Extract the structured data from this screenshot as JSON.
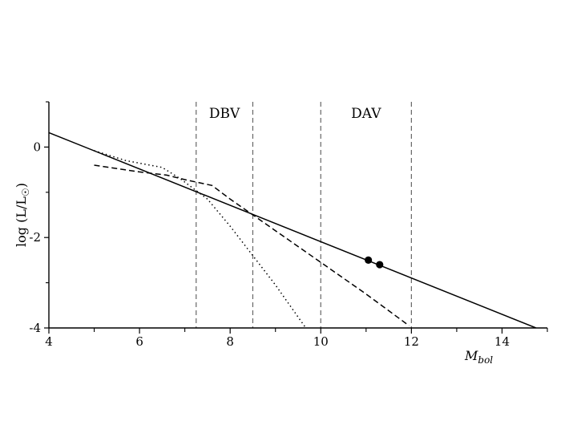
{
  "chart_data": {
    "type": "line",
    "xlabel": "M",
    "xlabel_sub": "bol",
    "ylabel": "log (L/L",
    "ylabel_suffix": ")",
    "xlim": [
      4,
      15
    ],
    "ylim": [
      -4,
      1
    ],
    "x_ticks": [
      4,
      6,
      8,
      10,
      12,
      14
    ],
    "x_minor_ticks": [
      5,
      7,
      9,
      11,
      13,
      15
    ],
    "y_ticks": [
      0,
      -2,
      -4
    ],
    "y_tick_labels": [
      "0",
      "-2",
      "-4"
    ],
    "y_minor_ticks": [
      -1,
      -3,
      1
    ],
    "instability_strips": [
      {
        "label": "DBV",
        "x_min": 7.25,
        "x_max": 8.5
      },
      {
        "label": "DAV",
        "x_min": 10.0,
        "x_max": 12.0
      }
    ],
    "series": [
      {
        "style": "solid",
        "x": [
          4.0,
          14.75
        ],
        "y": [
          0.32,
          -4.0
        ]
      },
      {
        "style": "dashed",
        "x": [
          5.0,
          6.0,
          6.6,
          7.0,
          7.6,
          8.0,
          8.5,
          9.0,
          10.0,
          11.0,
          11.95
        ],
        "y": [
          -0.4,
          -0.55,
          -0.62,
          -0.72,
          -0.85,
          -1.15,
          -1.5,
          -1.85,
          -2.55,
          -3.25,
          -3.95
        ]
      },
      {
        "style": "dotted",
        "x": [
          5.0,
          5.7,
          6.5,
          6.9,
          7.5,
          8.0,
          8.5,
          9.0,
          9.67
        ],
        "y": [
          -0.08,
          -0.3,
          -0.45,
          -0.7,
          -1.15,
          -1.75,
          -2.4,
          -3.05,
          -4.0
        ]
      }
    ],
    "points": [
      {
        "x": 11.05,
        "y": -2.5
      },
      {
        "x": 11.3,
        "y": -2.6
      }
    ],
    "grid": false
  }
}
